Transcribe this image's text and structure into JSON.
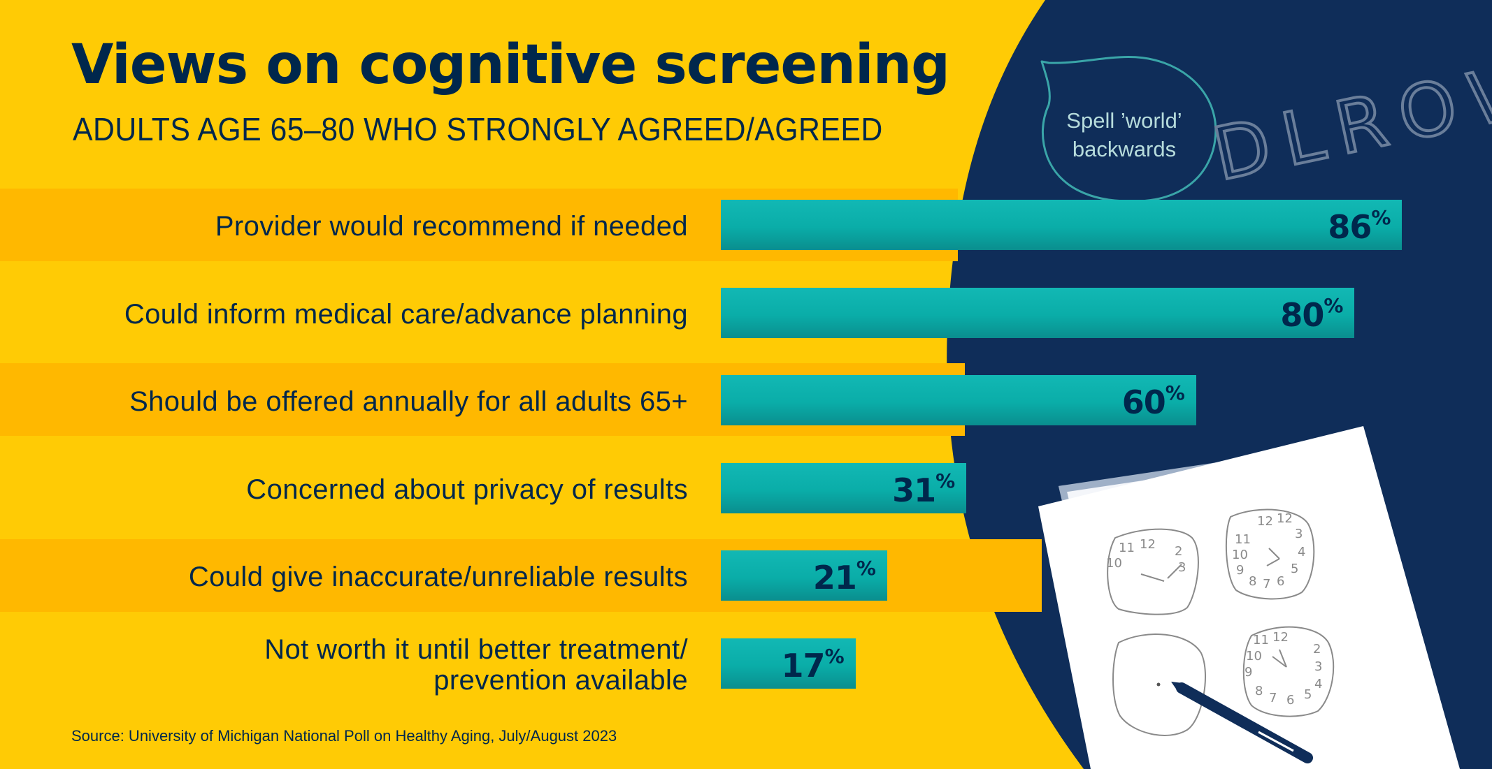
{
  "title": "Views on cognitive screening",
  "subtitle": "ADULTS AGE 65–80 WHO STRONGLY AGREED/AGREED",
  "source": "Source: University of Michigan National Poll on Healthy Aging, July/August 2023",
  "illustration": {
    "speech_bubble": [
      "Spell ’world’",
      "backwards"
    ],
    "handwriting": "DLROW",
    "clock_numbers": [
      "11",
      "12",
      "2",
      "3",
      "10",
      "12",
      "12",
      "3",
      "4",
      "5",
      "6",
      "7",
      "8",
      "9",
      "10",
      "11",
      "11",
      "12",
      "10",
      "9",
      "2",
      "3",
      "4",
      "5",
      "6",
      "7",
      "8"
    ]
  },
  "colors": {
    "background": "#FFCB05",
    "stripe": "#FFB800",
    "navy": "#00274C",
    "bar": "#0AADA8"
  },
  "chart_data": {
    "type": "bar",
    "orientation": "horizontal",
    "categories": [
      "Provider would recommend if needed",
      "Could inform medical care/advance planning",
      "Should be offered annually for all adults 65+",
      "Concerned about privacy of results",
      "Could give inaccurate/unreliable results",
      "Not worth it until better treatment/ prevention available"
    ],
    "category_lines": [
      [
        "Provider would recommend if needed"
      ],
      [
        "Could inform medical care/advance planning"
      ],
      [
        "Should be offered annually for all adults 65+"
      ],
      [
        "Concerned about privacy of results"
      ],
      [
        "Could give inaccurate/unreliable results"
      ],
      [
        "Not worth it until better treatment/",
        "prevention available"
      ]
    ],
    "values": [
      86,
      80,
      60,
      31,
      21,
      17
    ],
    "value_labels": [
      "86",
      "80",
      "60",
      "31",
      "21",
      "17"
    ],
    "value_suffix": "%",
    "xlim": [
      0,
      100
    ],
    "grid": false,
    "legend": "none"
  }
}
